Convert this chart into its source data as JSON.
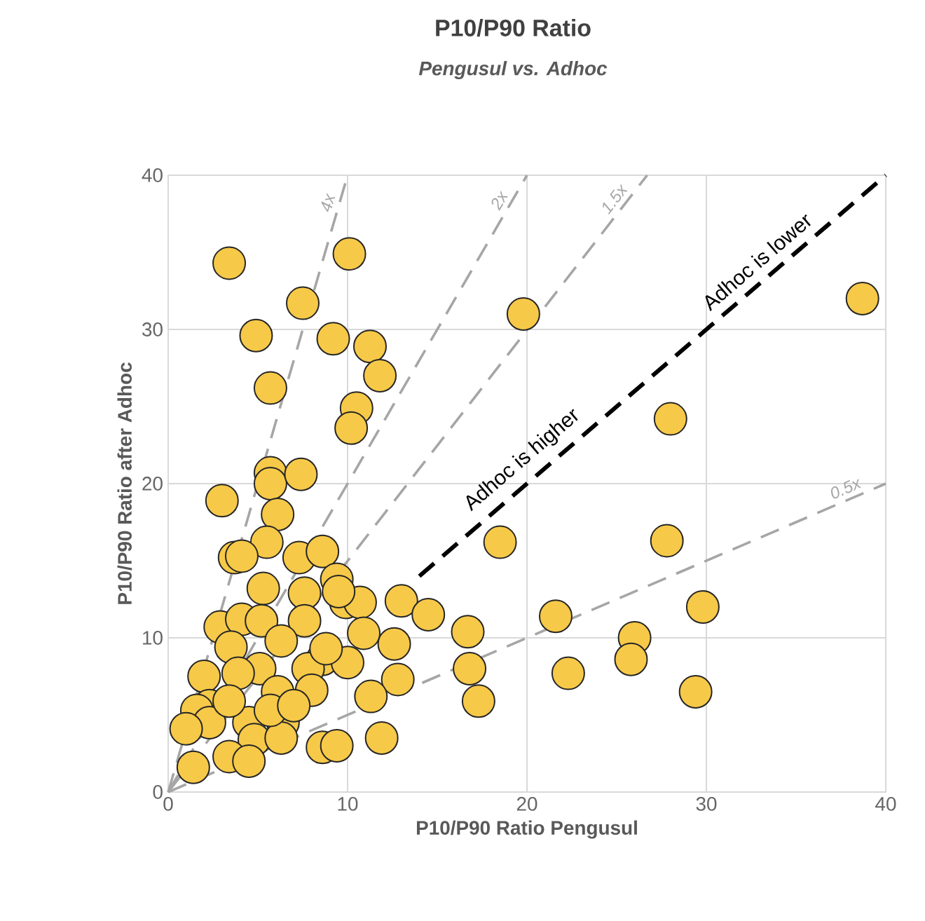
{
  "chart_data": {
    "type": "scatter",
    "title": "P10/P90 Ratio",
    "subtitle": "Pengusul vs. Adhoc",
    "xlabel": "P10/P90 Ratio Pengusul",
    "ylabel": "P10/P90 Ratio after Adhoc",
    "xlim": [
      0,
      40
    ],
    "ylim": [
      0,
      40
    ],
    "xticks": [
      0,
      10,
      20,
      30,
      40
    ],
    "yticks": [
      0,
      10,
      20,
      30,
      40
    ],
    "grid": true,
    "legend": false,
    "series": [
      {
        "type": "line",
        "name": "4x",
        "x": [
          0,
          10
        ],
        "values": [
          0,
          40
        ],
        "color": "#a6a6a6",
        "line_style": "dashed"
      },
      {
        "type": "line",
        "name": "2x",
        "x": [
          0,
          20
        ],
        "values": [
          0,
          40
        ],
        "color": "#a6a6a6",
        "line_style": "dashed"
      },
      {
        "type": "line",
        "name": "1.5x",
        "x": [
          0,
          26.7
        ],
        "values": [
          0,
          40
        ],
        "color": "#a6a6a6",
        "line_style": "dashed"
      },
      {
        "type": "line",
        "name": "0.5x",
        "x": [
          0,
          40
        ],
        "values": [
          0,
          20
        ],
        "color": "#a6a6a6",
        "line_style": "dashed"
      },
      {
        "type": "line",
        "x": [
          14,
          40
        ],
        "values": [
          14,
          40
        ],
        "color": "#000000",
        "line_style": "dashed"
      },
      {
        "type": "scatter",
        "color": "#f7c948",
        "marker": "circle",
        "x": [
          3.4,
          10.1,
          7.5,
          4.9,
          9.2,
          11.25,
          11.8,
          5.7,
          10.5,
          10.2,
          19.8,
          3.0,
          5.7,
          5.7,
          7.4,
          6.1,
          18.5,
          5.5,
          3.7,
          4.1,
          7.3,
          8.6,
          5.3,
          7.6,
          9.4,
          9.9,
          10.7,
          9.5,
          13.0,
          14.5,
          16.7,
          16.8,
          17.3,
          21.6,
          2.9,
          4.1,
          5.2,
          7.6,
          10.9,
          12.6,
          3.5,
          6.3,
          8.6,
          10.0,
          2.0,
          5.1,
          7.8,
          3.9,
          12.8,
          8.0,
          11.3,
          6.1,
          2.3,
          1.6,
          2.3,
          4.5,
          6.4,
          1.0,
          4.8,
          6.3,
          8.6,
          9.4,
          11.9,
          1.4,
          3.4,
          4.5,
          5.7,
          7.0,
          8.8,
          3.4,
          38.7,
          28.0,
          27.8,
          29.8,
          26.0,
          25.8,
          22.3,
          29.4
        ],
        "values": [
          34.3,
          34.9,
          31.7,
          29.6,
          29.4,
          28.9,
          27.0,
          26.2,
          24.9,
          23.6,
          31.0,
          18.9,
          20.7,
          20.0,
          20.6,
          18.0,
          16.2,
          16.2,
          15.2,
          15.3,
          15.2,
          15.6,
          13.2,
          12.9,
          13.8,
          12.3,
          12.3,
          13.0,
          12.4,
          11.5,
          10.4,
          8.0,
          5.9,
          11.4,
          10.7,
          11.2,
          11.1,
          11.1,
          10.3,
          9.6,
          9.4,
          9.8,
          8.6,
          8.4,
          7.5,
          8.0,
          8.0,
          7.7,
          7.3,
          6.6,
          6.2,
          6.5,
          5.6,
          5.3,
          4.5,
          4.5,
          4.5,
          4.1,
          3.4,
          3.5,
          2.9,
          3.0,
          3.5,
          1.6,
          2.3,
          2.0,
          5.3,
          5.6,
          9.3,
          5.9,
          32.0,
          24.2,
          16.3,
          12.0,
          10.0,
          8.6,
          7.7,
          6.5
        ]
      }
    ],
    "annotations": [
      "Adhoc is higher",
      "Adhoc is lower"
    ]
  }
}
